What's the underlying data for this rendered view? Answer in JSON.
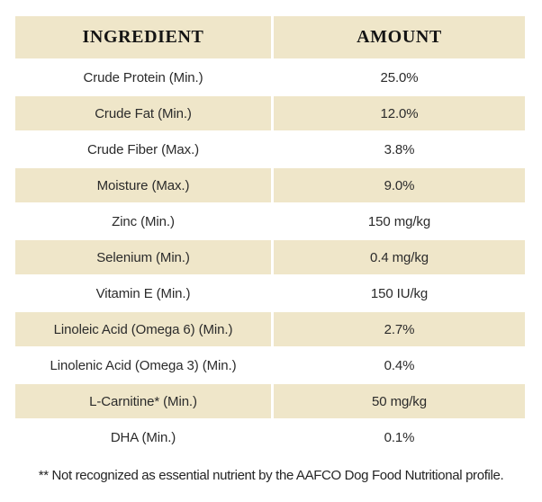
{
  "table": {
    "headers": {
      "ingredient": "INGREDIENT",
      "amount": "AMOUNT"
    },
    "rows": [
      {
        "ingredient": "Crude Protein (Min.)",
        "amount": "25.0%"
      },
      {
        "ingredient": "Crude Fat (Min.)",
        "amount": "12.0%"
      },
      {
        "ingredient": "Crude Fiber (Max.)",
        "amount": "3.8%"
      },
      {
        "ingredient": "Moisture (Max.)",
        "amount": "9.0%"
      },
      {
        "ingredient": "Zinc (Min.)",
        "amount": "150 mg/kg"
      },
      {
        "ingredient": "Selenium (Min.)",
        "amount": "0.4 mg/kg"
      },
      {
        "ingredient": "Vitamin E (Min.)",
        "amount": "150 IU/kg"
      },
      {
        "ingredient": "Linoleic Acid (Omega 6) (Min.)",
        "amount": "2.7%"
      },
      {
        "ingredient": "Linolenic Acid (Omega 3) (Min.)",
        "amount": "0.4%"
      },
      {
        "ingredient": "L-Carnitine* (Min.)",
        "amount": "50 mg/kg"
      },
      {
        "ingredient": "DHA (Min.)",
        "amount": "0.1%"
      }
    ]
  },
  "footnote": "** Not recognized as essential nutrient by the AAFCO Dog Food Nutritional profile.",
  "colors": {
    "row_highlight": "#efe6c9",
    "page_bg": "#ffffff",
    "body_text": "#2b2b2b",
    "header_text": "#141414"
  }
}
